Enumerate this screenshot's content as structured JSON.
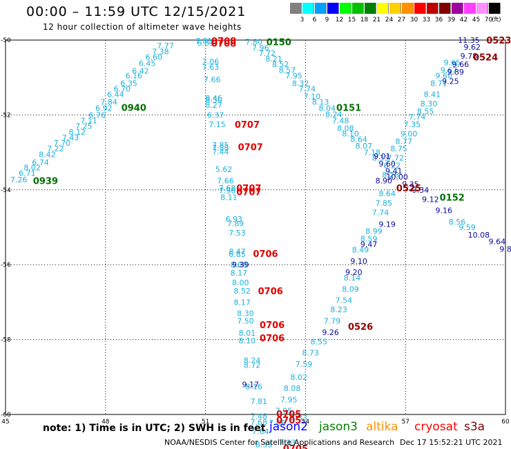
{
  "header": {
    "title": "00:00 – 11:59 UTC 12/15/2021",
    "subtitle": "12 hour collection of altimeter wave heights"
  },
  "legend": {
    "unit": "(ft)",
    "bins": [
      {
        "label": "3",
        "color": "#808080"
      },
      {
        "label": "6",
        "color": "#00ffff"
      },
      {
        "label": "9",
        "color": "#00a0ff"
      },
      {
        "label": "12",
        "color": "#0000ff"
      },
      {
        "label": "15",
        "color": "#00ff00"
      },
      {
        "label": "18",
        "color": "#00c000"
      },
      {
        "label": "21",
        "color": "#008000"
      },
      {
        "label": "24",
        "color": "#ffff00"
      },
      {
        "label": "27",
        "color": "#ffd000"
      },
      {
        "label": "30",
        "color": "#ff9000"
      },
      {
        "label": "33",
        "color": "#ff0000"
      },
      {
        "label": "36",
        "color": "#c00000"
      },
      {
        "label": "39",
        "color": "#800000"
      },
      {
        "label": "42",
        "color": "#a000a0"
      },
      {
        "label": "45",
        "color": "#ff40ff"
      },
      {
        "label": "70",
        "color": "#ff90ff"
      },
      {
        "label": "",
        "color": "#000000"
      }
    ]
  },
  "footer": {
    "note": "note: 1) Time is in UTC; 2) SWH is in feet",
    "credit": "NOAA/NESDIS Center for Satellite Applications and Research",
    "stamp": "Dec 17 15:52:21 UTC 2021",
    "satellites": [
      {
        "name": "jason2",
        "color": "#0000ff"
      },
      {
        "name": "jason3",
        "color": "#008000"
      },
      {
        "name": "altika",
        "color": "#ff9000"
      },
      {
        "name": "cryosat",
        "color": "#ff0000"
      },
      {
        "name": "s3a",
        "color": "#800000"
      }
    ]
  },
  "chart_data": {
    "type": "scatter",
    "xlim": [
      45,
      60
    ],
    "ylim": [
      -60,
      -50
    ],
    "xticks": [
      "45",
      "48",
      "51",
      "54",
      "57",
      "60"
    ],
    "yticks": [
      "-50",
      "-52",
      "-54",
      "-56",
      "-58",
      "-60"
    ],
    "grid": true,
    "palette": {
      "cyan": "#1ab0dd",
      "blue": "#0a0aa0",
      "green": "#007000",
      "red": "#e00000",
      "darkred": "#900000"
    },
    "tracks": [
      {
        "color": "cyan",
        "points": [
          [
            45.4,
            -53.73,
            "7.26"
          ],
          [
            45.65,
            -53.55,
            "6.71"
          ],
          [
            45.8,
            -53.4,
            "8.02"
          ],
          [
            46.05,
            -53.27,
            "6.74"
          ],
          [
            46.25,
            -53.05,
            "8.42"
          ],
          [
            46.5,
            -52.9,
            "7.22"
          ],
          [
            46.7,
            -52.75,
            "7.70"
          ],
          [
            46.95,
            -52.6,
            "7.43"
          ],
          [
            47.15,
            -52.45,
            "8.12"
          ],
          [
            47.35,
            -52.3,
            "7.25"
          ],
          [
            47.5,
            -52.15,
            "7.11"
          ],
          [
            47.75,
            -52.0,
            "6.76"
          ],
          [
            47.95,
            -51.82,
            "6.92"
          ],
          [
            48.1,
            -51.65,
            "7.84"
          ],
          [
            48.3,
            -51.45,
            "6.44"
          ],
          [
            48.5,
            -51.3,
            "6.70"
          ],
          [
            48.7,
            -51.15,
            "6.35"
          ],
          [
            48.85,
            -50.95,
            "6.16"
          ],
          [
            49.05,
            -50.82,
            "6.42"
          ],
          [
            49.25,
            -50.62,
            "6.45"
          ],
          [
            49.45,
            -50.45,
            "6.60"
          ],
          [
            49.65,
            -50.3,
            "7.38"
          ],
          [
            49.8,
            -50.15,
            "7.77"
          ],
          [
            50.95,
            -50.02,
            "7.81"
          ],
          [
            51.0,
            -50.07,
            "6.81"
          ]
        ]
      },
      {
        "color": "cyan",
        "points": [
          [
            51.15,
            -50.57,
            "7.06"
          ],
          [
            51.15,
            -50.72,
            "7.63"
          ],
          [
            51.2,
            -51.05,
            "7.66"
          ],
          [
            51.25,
            -51.55,
            "8.46"
          ],
          [
            51.25,
            -51.6,
            "8.50"
          ],
          [
            51.25,
            -51.73,
            "8.27"
          ],
          [
            51.3,
            -52.0,
            "6.37"
          ],
          [
            51.35,
            -52.25,
            "7.15"
          ],
          [
            51.45,
            -52.8,
            "7.85"
          ],
          [
            51.45,
            -52.88,
            "7.88"
          ],
          [
            51.45,
            -52.98,
            "7.44"
          ],
          [
            51.55,
            -53.45,
            "5.62"
          ],
          [
            51.6,
            -53.75,
            "7.66"
          ],
          [
            51.65,
            -53.95,
            "7.68"
          ],
          [
            51.65,
            -54.02,
            "7.96"
          ],
          [
            51.7,
            -54.2,
            "8.11"
          ],
          [
            51.85,
            -54.78,
            "6.93"
          ],
          [
            51.9,
            -54.9,
            "7.89"
          ],
          [
            51.95,
            -55.15,
            "7.53"
          ],
          [
            51.95,
            -55.65,
            "8.47"
          ],
          [
            51.95,
            -55.72,
            "6.85"
          ],
          [
            52.0,
            -56.0,
            "8.08"
          ],
          [
            52.0,
            -56.22,
            "8.17"
          ],
          [
            52.05,
            -56.48,
            "8.00"
          ],
          [
            52.1,
            -56.7,
            "8.52"
          ],
          [
            52.1,
            -57.0,
            "8.17"
          ],
          [
            52.2,
            -57.3,
            "8.30"
          ],
          [
            52.2,
            -57.5,
            "7.50"
          ],
          [
            52.25,
            -57.82,
            "8.01"
          ],
          [
            52.25,
            -58.03,
            "8.10"
          ],
          [
            52.4,
            -58.55,
            "8.24"
          ],
          [
            52.4,
            -58.68,
            "8.72"
          ],
          [
            52.45,
            -59.25,
            "8.16"
          ],
          [
            52.6,
            -59.65,
            "7.81"
          ],
          [
            52.6,
            -60.05,
            "7.48"
          ],
          [
            52.6,
            -60.2,
            "7.68"
          ],
          [
            52.65,
            -60.45,
            "7.64"
          ],
          [
            52.75,
            -60.8,
            "8.33"
          ],
          [
            53.45,
            -60.75,
            "7.33"
          ],
          [
            53.8,
            -60.08,
            "8.33"
          ]
        ]
      },
      {
        "color": "cyan",
        "points": [
          [
            52.45,
            -50.05,
            "7.80"
          ],
          [
            52.65,
            -50.2,
            "7.96"
          ],
          [
            52.85,
            -50.35,
            "7.72"
          ],
          [
            53.05,
            -50.5,
            "8.21"
          ],
          [
            53.25,
            -50.65,
            "8.52"
          ],
          [
            53.45,
            -50.8,
            "8.57"
          ],
          [
            53.65,
            -50.95,
            "7.95"
          ],
          [
            53.85,
            -51.15,
            "8.32"
          ],
          [
            54.05,
            -51.3,
            "7.74"
          ],
          [
            54.2,
            -51.5,
            "7.10"
          ],
          [
            54.45,
            -51.65,
            "8.13"
          ],
          [
            54.65,
            -51.82,
            "8.04"
          ],
          [
            54.85,
            -51.98,
            "8.24"
          ],
          [
            55.05,
            -52.15,
            "7.48"
          ],
          [
            55.2,
            -52.35,
            "8.08"
          ],
          [
            55.35,
            -52.5,
            "8.10"
          ],
          [
            55.6,
            -52.65,
            "8.64"
          ],
          [
            55.75,
            -52.82,
            "8.07"
          ],
          [
            56.0,
            -53.0,
            "7.18"
          ],
          [
            56.25,
            -53.15,
            "8.33"
          ]
        ]
      },
      {
        "color": "cyan",
        "points": [
          [
            58.4,
            -50.6,
            "9.65"
          ],
          [
            58.3,
            -50.8,
            "9.67"
          ],
          [
            58.15,
            -50.95,
            "9.60"
          ],
          [
            58.0,
            -51.15,
            "8.71"
          ],
          [
            57.8,
            -51.45,
            "8.41"
          ],
          [
            57.7,
            -51.7,
            "8.30"
          ],
          [
            57.6,
            -51.9,
            "8.55"
          ],
          [
            57.35,
            -52.05,
            "7.74"
          ],
          [
            57.2,
            -52.25,
            "7.35"
          ],
          [
            57.1,
            -52.5,
            "9.00"
          ],
          [
            56.95,
            -52.7,
            "8.77"
          ],
          [
            56.8,
            -52.9,
            "8.75"
          ],
          [
            56.7,
            -53.15,
            "7.72"
          ],
          [
            56.6,
            -53.35,
            "8.22"
          ],
          [
            56.55,
            -53.6,
            "8.26"
          ],
          [
            56.45,
            -54.1,
            "8.64"
          ],
          [
            56.35,
            -54.35,
            "7.85"
          ],
          [
            56.25,
            -54.6,
            "7.74"
          ],
          [
            56.05,
            -55.1,
            "8.99"
          ],
          [
            55.9,
            -55.3,
            "8.59"
          ],
          [
            55.65,
            -55.6,
            "8.49"
          ],
          [
            55.4,
            -56.35,
            "8.14"
          ],
          [
            55.35,
            -56.65,
            "8.09"
          ],
          [
            55.15,
            -56.95,
            "7.54"
          ],
          [
            55.0,
            -57.2,
            "8.23"
          ],
          [
            54.8,
            -57.5,
            "7.79"
          ],
          [
            54.4,
            -58.05,
            "8.55"
          ],
          [
            54.15,
            -58.35,
            "8.73"
          ],
          [
            53.95,
            -58.65,
            "7.59"
          ],
          [
            53.8,
            -59.0,
            "8.02"
          ],
          [
            53.6,
            -59.3,
            "8.08"
          ],
          [
            53.5,
            -59.6,
            "7.95"
          ],
          [
            53.35,
            -59.9,
            "7.95"
          ],
          [
            53.15,
            -60.22,
            "7.86"
          ]
        ]
      },
      {
        "color": "cyan",
        "points": [
          [
            58.55,
            -54.85,
            "8.56"
          ],
          [
            58.85,
            -55.0,
            "9.59"
          ]
        ]
      },
      {
        "color": "blue",
        "points": [
          [
            58.9,
            -50.0,
            "11.35"
          ],
          [
            59.0,
            -50.18,
            "9.62"
          ],
          [
            58.9,
            -50.42,
            "9.78"
          ],
          [
            58.65,
            -50.65,
            "9.66"
          ],
          [
            58.5,
            -50.85,
            "9.89"
          ],
          [
            58.35,
            -51.1,
            "9.25"
          ],
          [
            56.45,
            -53.3,
            "9.60"
          ],
          [
            56.65,
            -53.5,
            "9.41"
          ],
          [
            56.75,
            -53.65,
            "10.00"
          ],
          [
            56.3,
            -53.1,
            "9.01"
          ],
          [
            56.35,
            -53.75,
            "8.90"
          ],
          [
            56.45,
            -54.92,
            "9.19"
          ],
          [
            55.9,
            -55.45,
            "9.47"
          ],
          [
            55.6,
            -55.9,
            "9.10"
          ],
          [
            55.45,
            -56.2,
            "9.20"
          ],
          [
            54.75,
            -57.8,
            "9.26"
          ],
          [
            52.35,
            -59.2,
            "9.17"
          ],
          [
            52.05,
            -56.0,
            "9.39"
          ],
          [
            57.15,
            -53.85,
            "9.35"
          ],
          [
            57.45,
            -54.0,
            "9.34"
          ],
          [
            57.75,
            -54.25,
            "9.12"
          ],
          [
            58.15,
            -54.55,
            "9.16"
          ],
          [
            59.2,
            -55.2,
            "10.08"
          ],
          [
            59.75,
            -55.38,
            "9.64"
          ],
          [
            60.0,
            -55.58,
            "9.8"
          ]
        ]
      }
    ],
    "labels": [
      {
        "text": "0708",
        "x": 51.55,
        "y": -50.02,
        "color": "red"
      },
      {
        "text": "0708",
        "x": 51.55,
        "y": -50.08,
        "color": "red"
      },
      {
        "text": "0150",
        "x": 53.2,
        "y": -50.05,
        "color": "green"
      },
      {
        "text": "0940",
        "x": 48.85,
        "y": -51.8,
        "color": "green"
      },
      {
        "text": "0939",
        "x": 46.2,
        "y": -53.75,
        "color": "green"
      },
      {
        "text": "0707",
        "x": 52.25,
        "y": -52.25,
        "color": "red"
      },
      {
        "text": "0707",
        "x": 52.35,
        "y": -52.85,
        "color": "red"
      },
      {
        "text": "0707",
        "x": 52.3,
        "y": -53.95,
        "color": "red"
      },
      {
        "text": "0707",
        "x": 52.3,
        "y": -54.05,
        "color": "red"
      },
      {
        "text": "0706",
        "x": 52.8,
        "y": -55.7,
        "color": "red"
      },
      {
        "text": "0706",
        "x": 52.95,
        "y": -56.7,
        "color": "red"
      },
      {
        "text": "0706",
        "x": 53.0,
        "y": -57.6,
        "color": "red"
      },
      {
        "text": "0706",
        "x": 53.0,
        "y": -57.95,
        "color": "red"
      },
      {
        "text": "0705",
        "x": 53.5,
        "y": -59.98,
        "color": "red"
      },
      {
        "text": "0705",
        "x": 53.5,
        "y": -60.15,
        "color": "red"
      },
      {
        "text": "0705",
        "x": 53.7,
        "y": -60.9,
        "color": "red"
      },
      {
        "text": "0151",
        "x": 55.3,
        "y": -51.8,
        "color": "green"
      },
      {
        "text": "0152",
        "x": 58.4,
        "y": -54.2,
        "color": "green"
      },
      {
        "text": "0525",
        "x": 57.1,
        "y": -53.95,
        "color": "darkred"
      },
      {
        "text": "0523",
        "x": 59.8,
        "y": -50.0,
        "color": "darkred"
      },
      {
        "text": "0524",
        "x": 59.4,
        "y": -50.45,
        "color": "darkred"
      },
      {
        "text": "0526",
        "x": 55.65,
        "y": -57.65,
        "color": "darkred"
      }
    ]
  }
}
